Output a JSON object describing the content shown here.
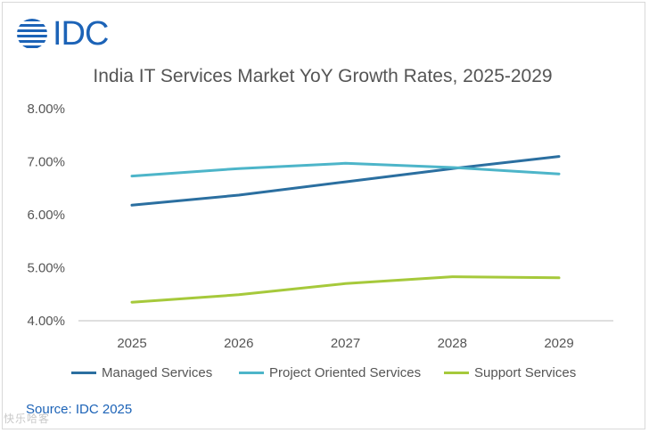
{
  "brand": {
    "logo_text": "IDC"
  },
  "colors": {
    "brand": "#1c63b7",
    "managed": "#2b6fa0",
    "project": "#4db5c9",
    "support": "#a6c93b",
    "axis": "#bfbfbf",
    "text": "#555555"
  },
  "chart_data": {
    "type": "line",
    "title": "India IT Services Market YoY Growth Rates, 2025-2029",
    "xlabel": "",
    "ylabel": "",
    "categories": [
      "2025",
      "2026",
      "2027",
      "2028",
      "2029"
    ],
    "yticks": [
      "8.00%",
      "7.00%",
      "6.00%",
      "5.00%",
      "4.00%"
    ],
    "ylim": [
      4.0,
      8.0
    ],
    "grid": false,
    "legend_position": "bottom",
    "series": [
      {
        "name": "Managed Services",
        "color": "#2b6fa0",
        "values": [
          6.18,
          6.37,
          6.62,
          6.87,
          7.1
        ]
      },
      {
        "name": "Project Oriented Services",
        "color": "#4db5c9",
        "values": [
          6.73,
          6.87,
          6.97,
          6.89,
          6.77
        ]
      },
      {
        "name": "Support Services",
        "color": "#a6c93b",
        "values": [
          4.35,
          4.49,
          4.7,
          4.83,
          4.81
        ]
      }
    ]
  },
  "source_text": "Source: IDC 2025",
  "watermark_text": "快乐哈客"
}
